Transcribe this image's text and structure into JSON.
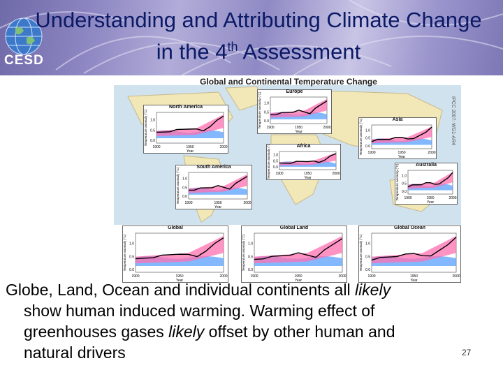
{
  "header": {
    "title_line1": "Understanding and Attributing Climate Change",
    "title_line2_prefix": "in the 4",
    "title_line2_sup": "th",
    "title_line2_suffix": " Assessment",
    "logo_text": "CESD"
  },
  "figure": {
    "title": "Global and Continental Temperature Change",
    "source_tag": "IPCC 2007: WG1-AR4",
    "panels": [
      {
        "id": "north-america",
        "label": "North America"
      },
      {
        "id": "europe",
        "label": "Europe"
      },
      {
        "id": "asia",
        "label": "Asia"
      },
      {
        "id": "africa",
        "label": "Africa"
      },
      {
        "id": "south-america",
        "label": "South America"
      },
      {
        "id": "australia",
        "label": "Australia"
      },
      {
        "id": "global",
        "label": "Global"
      },
      {
        "id": "global-land",
        "label": "Global Land"
      },
      {
        "id": "global-ocean",
        "label": "Global Ocean"
      }
    ],
    "axis": {
      "xticks": [
        "1900",
        "1950",
        "2000"
      ],
      "xlabel": "Year",
      "ylabel": "Temperature anomaly (°C)",
      "yticks": [
        "0.0",
        "0.5",
        "1.0"
      ]
    },
    "colors": {
      "land": "#f2e7b6",
      "ocean": "#cfe2ee",
      "observed": "#000000",
      "natural": "#5aa0ff",
      "all_forcings": "#ff6fb0"
    }
  },
  "caption": {
    "line1_a": "Globe, Land, Ocean and individual continents all ",
    "line1_em": "likely",
    "line2": "show human induced warming. Warming effect of",
    "line3_a": "greenhouses gases ",
    "line3_em": "likely",
    "line3_b": " offset by other human and",
    "line4": "natural drivers"
  },
  "page_number": "27"
}
